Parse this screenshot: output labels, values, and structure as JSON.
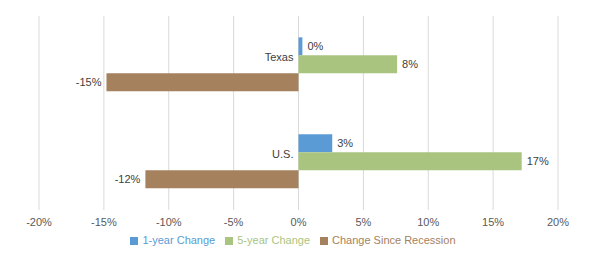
{
  "chart_data": {
    "type": "bar",
    "orientation": "horizontal",
    "categories": [
      "Texas",
      "U.S."
    ],
    "series": [
      {
        "name": "1-year Change",
        "color": "#5b9bd5",
        "values": [
          0.3,
          2.6
        ],
        "value_labels": [
          "0%",
          "3%"
        ]
      },
      {
        "name": "5-year Change",
        "color": "#a9c47f",
        "values": [
          7.6,
          17.2
        ],
        "value_labels": [
          "8%",
          "17%"
        ]
      },
      {
        "name": "Change Since Recession",
        "color": "#a5815e",
        "values": [
          -14.8,
          -11.8
        ],
        "value_labels": [
          "-15%",
          "-12%"
        ]
      }
    ],
    "xlim": [
      -20,
      20
    ],
    "xticks": [
      {
        "value": -20,
        "label": "-20%"
      },
      {
        "value": -15,
        "label": "-15%"
      },
      {
        "value": -10,
        "label": "-10%"
      },
      {
        "value": -5,
        "label": "-5%"
      },
      {
        "value": 0,
        "label": "0%"
      },
      {
        "value": 5,
        "label": "5%"
      },
      {
        "value": 10,
        "label": "10%"
      },
      {
        "value": 15,
        "label": "15%"
      },
      {
        "value": 20,
        "label": "20%"
      }
    ],
    "grid": true,
    "data_labels": true,
    "legend": "bottom"
  }
}
